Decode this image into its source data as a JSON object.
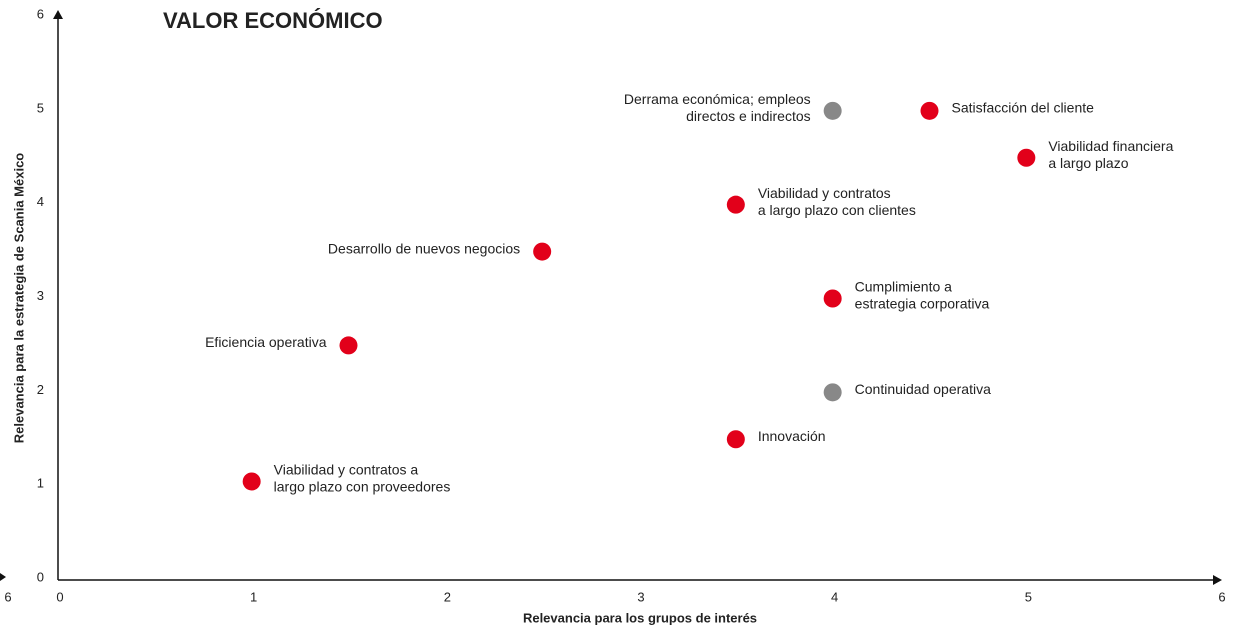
{
  "chart_data": {
    "type": "scatter",
    "title": "VALOR ECONÓMICO",
    "x_label": "Relevancia para los grupos de interés",
    "y_label": "Relevancia para la estrategia de Scania México",
    "xlim": [
      0,
      6
    ],
    "xticks": [
      0,
      1,
      2,
      3,
      4,
      5,
      6
    ],
    "ylim": [
      0,
      6
    ],
    "yticks": [
      0,
      1,
      2,
      3,
      4,
      5,
      6
    ],
    "annotations": [
      "6"
    ],
    "points": [
      {
        "x": 4,
        "y": 5,
        "color": "#888888",
        "label_side": "left",
        "label": [
          "Derrama económica; empleos",
          "directos e indirectos"
        ]
      },
      {
        "x": 4.5,
        "y": 5,
        "color": "#e2001a",
        "label_side": "right",
        "label": [
          "Satisfacción del cliente"
        ]
      },
      {
        "x": 5,
        "y": 4.5,
        "color": "#e2001a",
        "label_side": "right",
        "label": [
          "Viabilidad financiera",
          "a largo plazo"
        ]
      },
      {
        "x": 3.5,
        "y": 4,
        "color": "#e2001a",
        "label_side": "right",
        "label": [
          "Viabilidad y contratos",
          "a largo plazo con clientes"
        ]
      },
      {
        "x": 2.5,
        "y": 3.5,
        "color": "#e2001a",
        "label_side": "left",
        "label": [
          "Desarrollo de nuevos negocios"
        ]
      },
      {
        "x": 4,
        "y": 3,
        "color": "#e2001a",
        "label_side": "right",
        "label": [
          "Cumplimiento a",
          "estrategia corporativa"
        ]
      },
      {
        "x": 1.5,
        "y": 2.5,
        "color": "#e2001a",
        "label_side": "left",
        "label": [
          "Eficiencia operativa"
        ]
      },
      {
        "x": 4,
        "y": 2,
        "color": "#888888",
        "label_side": "right",
        "label": [
          "Continuidad operativa"
        ]
      },
      {
        "x": 3.5,
        "y": 1.5,
        "color": "#e2001a",
        "label_side": "right",
        "label": [
          "Innovación"
        ]
      },
      {
        "x": 1,
        "y": 1.05,
        "color": "#e2001a",
        "label_side": "right",
        "label": [
          "Viabilidad y contratos a",
          "largo plazo con proveedores"
        ]
      }
    ]
  }
}
